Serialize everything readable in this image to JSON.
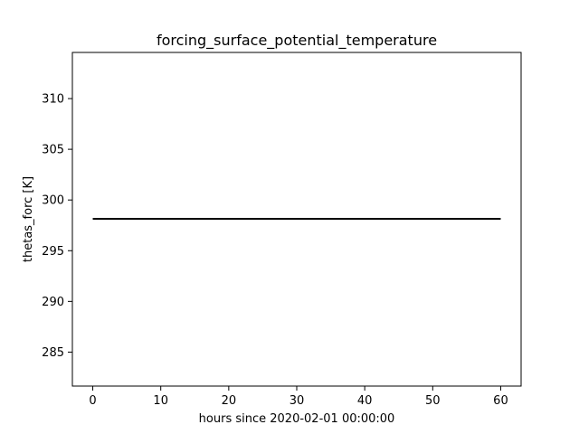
{
  "chart_data": {
    "type": "line",
    "title": "forcing_surface_potential_temperature",
    "xlabel": "hours since 2020-02-01 00:00:00",
    "ylabel": "thetas_forc [K]",
    "xlim": [
      -3,
      63
    ],
    "ylim": [
      281.65,
      314.55
    ],
    "xticks": [
      0,
      10,
      20,
      30,
      40,
      50,
      60
    ],
    "yticks": [
      285,
      290,
      295,
      300,
      305,
      310
    ],
    "grid": false,
    "series": [
      {
        "color": "#000000",
        "x": [
          0,
          60
        ],
        "y": [
          298.15,
          298.15
        ]
      }
    ]
  }
}
